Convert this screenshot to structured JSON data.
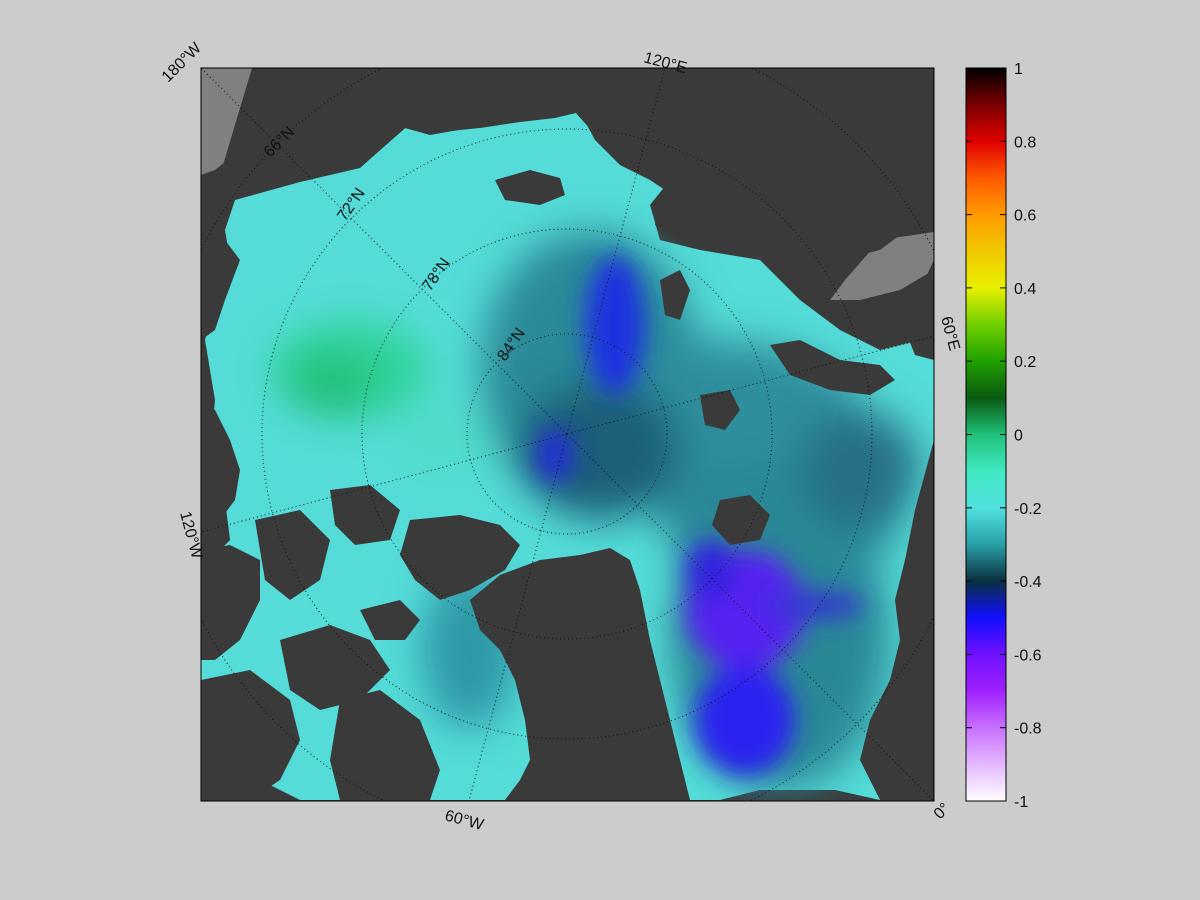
{
  "map": {
    "longitude_labels": [
      "180°W",
      "120°E",
      "60°E",
      "0°",
      "60°W",
      "120°W"
    ],
    "latitude_labels": [
      "66°N",
      "72°N",
      "78°N",
      "84°N"
    ],
    "colors": {
      "ocean_base": "#55dcd8",
      "land": "#3a3a3a",
      "land_unmapped": "#808080",
      "background": "#cccccc"
    }
  },
  "colorbar": {
    "ticks": [
      "1",
      "0.8",
      "0.6",
      "0.4",
      "0.2",
      "0",
      "-0.2",
      "-0.4",
      "-0.6",
      "-0.8",
      "-1"
    ],
    "range": [
      -1,
      1
    ],
    "stops": [
      {
        "v": 1.0,
        "c": "#000000"
      },
      {
        "v": 0.9,
        "c": "#7a0000"
      },
      {
        "v": 0.8,
        "c": "#e00000"
      },
      {
        "v": 0.7,
        "c": "#ff5a00"
      },
      {
        "v": 0.6,
        "c": "#ff9a00"
      },
      {
        "v": 0.5,
        "c": "#f0c800"
      },
      {
        "v": 0.4,
        "c": "#e8f000"
      },
      {
        "v": 0.3,
        "c": "#70d000"
      },
      {
        "v": 0.2,
        "c": "#1fa000"
      },
      {
        "v": 0.1,
        "c": "#0a5a10"
      },
      {
        "v": 0.0,
        "c": "#20c07a"
      },
      {
        "v": -0.1,
        "c": "#40e8c0"
      },
      {
        "v": -0.2,
        "c": "#50e0e0"
      },
      {
        "v": -0.3,
        "c": "#2aa0a8"
      },
      {
        "v": -0.4,
        "c": "#0a3040"
      },
      {
        "v": -0.5,
        "c": "#1010ff"
      },
      {
        "v": -0.6,
        "c": "#7010ff"
      },
      {
        "v": -0.7,
        "c": "#a020ff"
      },
      {
        "v": -0.8,
        "c": "#c870ff"
      },
      {
        "v": -0.9,
        "c": "#e4b8ff"
      },
      {
        "v": -1.0,
        "c": "#ffffff"
      }
    ]
  }
}
